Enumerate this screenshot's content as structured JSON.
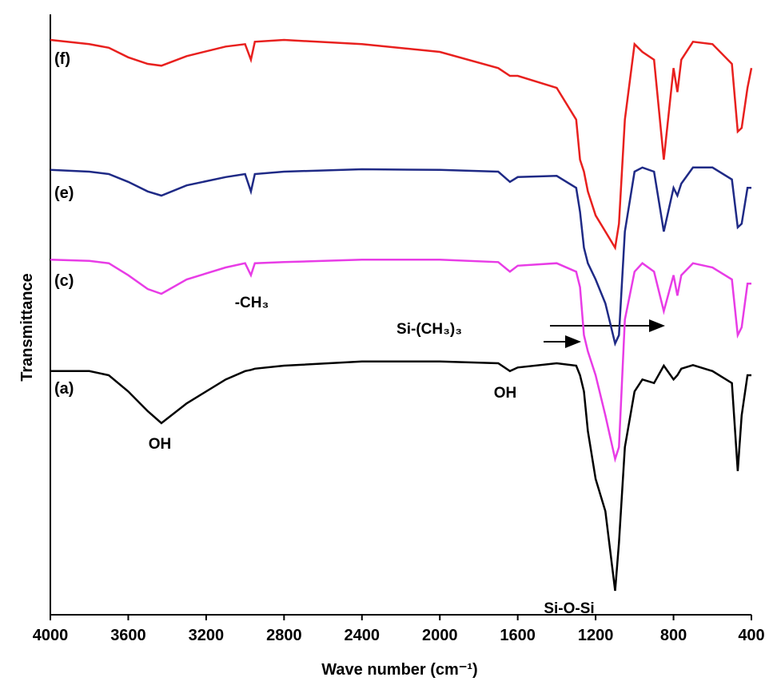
{
  "chart_data": {
    "type": "line",
    "xlabel": "Wave number (cm⁻¹)",
    "ylabel": "Transmittance",
    "xlim": [
      4000,
      400
    ],
    "ylim": [
      0,
      100
    ],
    "xticks": [
      4000,
      3600,
      3200,
      2800,
      2400,
      2000,
      1600,
      1200,
      800,
      400
    ],
    "x": [
      4000,
      3800,
      3700,
      3600,
      3500,
      3430,
      3300,
      3100,
      3000,
      2970,
      2950,
      2800,
      2400,
      2000,
      1700,
      1640,
      1600,
      1400,
      1300,
      1280,
      1260,
      1240,
      1200,
      1150,
      1100,
      1080,
      1050,
      1000,
      960,
      900,
      850,
      800,
      780,
      760,
      700,
      600,
      500,
      470,
      450,
      420,
      400
    ],
    "series": [
      {
        "name": "(f)",
        "color": "#e8201e",
        "values": [
          96,
          95.3,
          94.7,
          93.1,
          92,
          91.7,
          93.3,
          94.9,
          95.3,
          92.7,
          95.7,
          96,
          95.3,
          94,
          91.3,
          90,
          90,
          88,
          82.7,
          76,
          74,
          70.7,
          66.7,
          64,
          61.3,
          65.3,
          82.7,
          95.3,
          94,
          92.7,
          76,
          91.3,
          87.3,
          92.7,
          95.7,
          95.3,
          92,
          80.7,
          81.3,
          88,
          91.3
        ]
      },
      {
        "name": "(e)",
        "color": "#1f2a86",
        "values": [
          74.3,
          74,
          73.6,
          72.3,
          70.7,
          70,
          71.7,
          73.1,
          73.6,
          70.7,
          73.6,
          74,
          74.4,
          74.3,
          74,
          72.3,
          73.1,
          73.3,
          71.3,
          67.3,
          61.3,
          58.7,
          56,
          52,
          45.3,
          46.7,
          64,
          74,
          74.7,
          74,
          64,
          71.3,
          70,
          72,
          74.7,
          74.7,
          72.7,
          64.7,
          65.3,
          71.3,
          71.3
        ]
      },
      {
        "name": "(c)",
        "color": "#e83ce6",
        "values": [
          59.3,
          59.1,
          58.7,
          56.7,
          54.4,
          53.6,
          56,
          58,
          58.7,
          56.7,
          58.7,
          58.9,
          59.3,
          59.3,
          58.9,
          57.3,
          58.3,
          58.7,
          57.3,
          54.7,
          46.7,
          44,
          40,
          33.3,
          26,
          28,
          49.3,
          57.3,
          58.7,
          57.3,
          50.7,
          56.7,
          53.3,
          56.7,
          58.7,
          58,
          56,
          46.7,
          48,
          55.3,
          55.3
        ]
      },
      {
        "name": "(a)",
        "color": "#000000",
        "values": [
          40.7,
          40.7,
          40,
          37.3,
          34,
          32,
          35.3,
          39.3,
          40.7,
          40.9,
          41.1,
          41.6,
          42.3,
          42.3,
          42,
          40.7,
          41.3,
          42,
          41.6,
          40,
          37.3,
          30.7,
          22.7,
          17.3,
          4,
          12,
          28,
          37.3,
          39.3,
          38.7,
          41.6,
          39.3,
          40,
          41.1,
          41.7,
          40.7,
          38.7,
          24,
          33.3,
          40,
          40
        ]
      }
    ],
    "annotations": [
      "OH",
      "-CH₃",
      "OH",
      "Si-(CH₃)₃",
      "Si-O-Si"
    ]
  }
}
